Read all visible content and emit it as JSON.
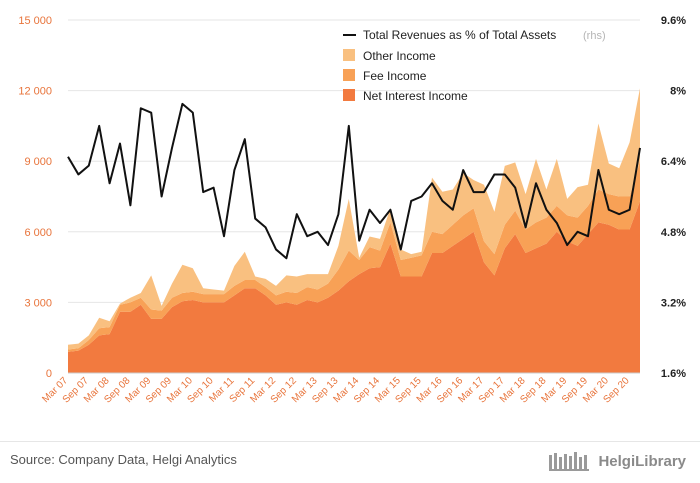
{
  "colors": {
    "other_income": "#f9c080",
    "fee_income": "#f8a156",
    "net_interest_income": "#f27a3f",
    "ratio_line": "#111111",
    "left_axis_text": "#e8743b",
    "right_axis_text": "#222222",
    "grid": "#e6e6e6"
  },
  "footer": {
    "source": "Source: Company Data, Helgi Analytics",
    "logo_text": "HelgiLibrary"
  },
  "chart_data": {
    "type": "area",
    "stacked": true,
    "x": [
      "Mar 07",
      "Jun 07",
      "Sep 07",
      "Dec 07",
      "Mar 08",
      "Jun 08",
      "Sep 08",
      "Dec 08",
      "Mar 09",
      "Jun 09",
      "Sep 09",
      "Dec 09",
      "Mar 10",
      "Jun 10",
      "Sep 10",
      "Dec 10",
      "Mar 11",
      "Jun 11",
      "Sep 11",
      "Dec 11",
      "Mar 12",
      "Jun 12",
      "Sep 12",
      "Dec 12",
      "Mar 13",
      "Jun 13",
      "Sep 13",
      "Dec 13",
      "Mar 14",
      "Jun 14",
      "Sep 14",
      "Dec 14",
      "Mar 15",
      "Jun 15",
      "Sep 15",
      "Dec 15",
      "Mar 16",
      "Jun 16",
      "Sep 16",
      "Dec 16",
      "Mar 17",
      "Jun 17",
      "Sep 17",
      "Dec 17",
      "Mar 18",
      "Jun 18",
      "Sep 18",
      "Dec 18",
      "Mar 19",
      "Jun 19",
      "Sep 19",
      "Dec 19",
      "Mar 20",
      "Jun 20",
      "Sep 20",
      "Dec 20"
    ],
    "x_tick_labels": [
      "Mar 07",
      "Sep 07",
      "Mar 08",
      "Sep 08",
      "Mar 09",
      "Sep 09",
      "Mar 10",
      "Sep 10",
      "Mar 11",
      "Sep 11",
      "Mar 12",
      "Sep 12",
      "Mar 13",
      "Sep 13",
      "Mar 14",
      "Sep 14",
      "Mar 15",
      "Sep 15",
      "Mar 16",
      "Sep 16",
      "Mar 17",
      "Sep 17",
      "Mar 18",
      "Sep 18",
      "Mar 19",
      "Sep 19",
      "Mar 20",
      "Sep 20"
    ],
    "y_left": {
      "lim": [
        0,
        15000
      ],
      "ticks": [
        0,
        3000,
        6000,
        9000,
        12000,
        15000
      ],
      "tick_labels": [
        "0",
        "3 000",
        "6 000",
        "9 000",
        "12 000",
        "15 000"
      ]
    },
    "y_right": {
      "lim": [
        1.6,
        9.6
      ],
      "ticks": [
        1.6,
        3.2,
        4.8,
        6.4,
        8.0,
        9.6
      ],
      "tick_labels": [
        "1.6%",
        "3.2%",
        "4.8%",
        "6.4%",
        "8%",
        "9.6%"
      ]
    },
    "grid": true,
    "legend_position": "top-right",
    "series": [
      {
        "name": "Net Interest Income",
        "values": [
          900,
          950,
          1200,
          1600,
          1650,
          2600,
          2600,
          2900,
          2300,
          2300,
          2800,
          3050,
          3100,
          3000,
          3000,
          3000,
          3300,
          3600,
          3600,
          3300,
          2900,
          3000,
          2900,
          3100,
          3000,
          3200,
          3500,
          3900,
          4200,
          4450,
          4500,
          5500,
          4100,
          4100,
          4100,
          5100,
          5100,
          5400,
          5700,
          6000,
          4700,
          4150,
          5300,
          5900,
          5100,
          5300,
          5500,
          6000,
          5600,
          5400,
          5900,
          6400,
          6300,
          6100,
          6100,
          7300
        ]
      },
      {
        "name": "Fee Income",
        "values": [
          100,
          100,
          200,
          300,
          300,
          300,
          400,
          300,
          400,
          350,
          400,
          350,
          350,
          350,
          350,
          350,
          400,
          350,
          350,
          350,
          400,
          450,
          500,
          550,
          550,
          600,
          900,
          1300,
          600,
          900,
          700,
          900,
          700,
          800,
          900,
          900,
          800,
          900,
          1000,
          1000,
          900,
          900,
          1000,
          1000,
          1000,
          1100,
          1100,
          1100,
          1100,
          1200,
          1200,
          1400,
          1300,
          1400,
          1400,
          1700
        ]
      },
      {
        "name": "Other Income",
        "values": [
          200,
          200,
          200,
          450,
          250,
          50,
          200,
          200,
          1450,
          200,
          600,
          1200,
          1000,
          250,
          200,
          150,
          850,
          1200,
          150,
          350,
          400,
          700,
          700,
          550,
          650,
          400,
          1000,
          2200,
          100,
          450,
          500,
          600,
          450,
          150,
          150,
          2300,
          1800,
          1500,
          1800,
          1200,
          2400,
          1800,
          2500,
          2050,
          1500,
          2700,
          1200,
          2000,
          700,
          1300,
          900,
          2800,
          1300,
          1200,
          2300,
          3100
        ]
      }
    ],
    "line_series": {
      "name": "Total Revenues as % of Total Assets",
      "axis_note": "(rhs)",
      "values": [
        6.5,
        6.1,
        6.3,
        7.2,
        5.9,
        6.8,
        5.4,
        7.6,
        7.5,
        5.6,
        6.7,
        7.7,
        7.5,
        5.7,
        5.8,
        4.7,
        6.2,
        6.9,
        5.1,
        4.9,
        4.4,
        4.2,
        5.2,
        4.7,
        4.8,
        4.5,
        5.2,
        7.2,
        4.6,
        5.3,
        5.0,
        5.3,
        4.4,
        5.5,
        5.6,
        5.9,
        5.5,
        5.3,
        6.2,
        5.7,
        5.7,
        6.1,
        6.1,
        5.8,
        4.9,
        5.9,
        5.3,
        5.0,
        4.5,
        4.8,
        4.7,
        6.2,
        5.3,
        5.2,
        5.3,
        6.7
      ]
    }
  }
}
